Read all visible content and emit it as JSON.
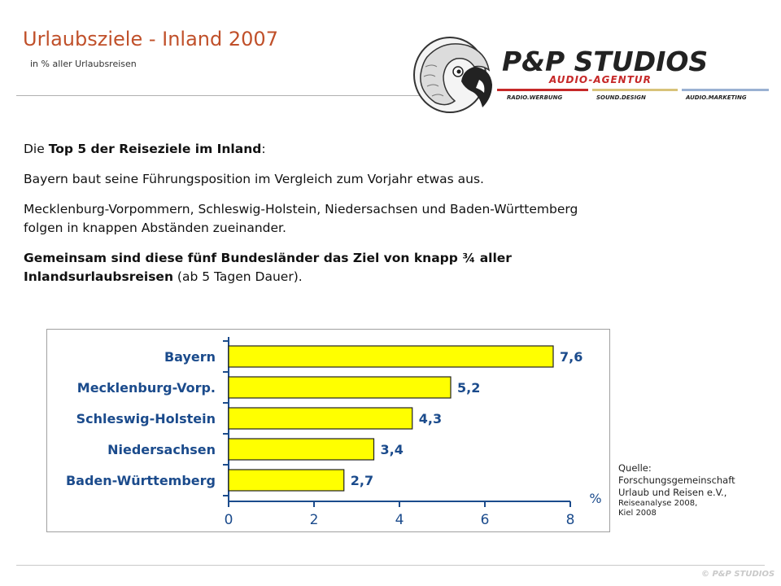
{
  "header": {
    "title": "Urlaubsziele - Inland 2007",
    "subtitle": "in % aller Urlaubsreisen"
  },
  "logo": {
    "name": "P&P STUDIOS",
    "tagline": "AUDIO-AGENTUR",
    "items": [
      "RADIO.WERBUNG",
      "SOUND.DESIGN",
      "AUDIO.MARKETING"
    ],
    "colors": {
      "red": "#c62828",
      "gold": "#d8c37a",
      "blue": "#9ab1d2"
    }
  },
  "body": {
    "p1_pre": "Die ",
    "p1_bold": "Top 5 der Reiseziele im Inland",
    "p1_post": ":",
    "p2": "Bayern baut seine Führungsposition im Vergleich zum Vorjahr etwas aus.",
    "p3": "Mecklenburg-Vorpommern, Schleswig-Holstein, Niedersachsen und Baden-Württemberg folgen in knappen Abständen zueinander.",
    "p4_pre": "Gemeinsam sind diese fünf Bundesländer das Ziel von knapp ",
    "p4_bold": "¾ aller Inlandsurlaubsreisen",
    "p4_post": " (ab 5 Tagen Dauer)."
  },
  "chart_data": {
    "type": "bar",
    "orientation": "horizontal",
    "categories": [
      "Bayern",
      "Mecklenburg-Vorp.",
      "Schleswig-Holstein",
      "Niedersachsen",
      "Baden-Württemberg"
    ],
    "values": [
      7.6,
      5.2,
      4.3,
      3.4,
      2.7
    ],
    "value_labels": [
      "7,6",
      "5,2",
      "4,3",
      "3,4",
      "2,7"
    ],
    "x_ticks": [
      "0",
      "2",
      "4",
      "6",
      "8"
    ],
    "xlim": [
      0,
      8
    ],
    "unit_label": "%",
    "grid": false,
    "colors": {
      "bar": "#ffff00",
      "label": "#1b4b8c",
      "axis": "#1b4b8c"
    }
  },
  "source": {
    "line1": "Quelle:",
    "line2": "Forschungsgemeinschaft",
    "line3": "Urlaub und Reisen e.V.,",
    "line4": "Reiseanalyse 2008,",
    "line5": "Kiel 2008"
  },
  "footer": {
    "copyright": "© P&P STUDIOS"
  }
}
